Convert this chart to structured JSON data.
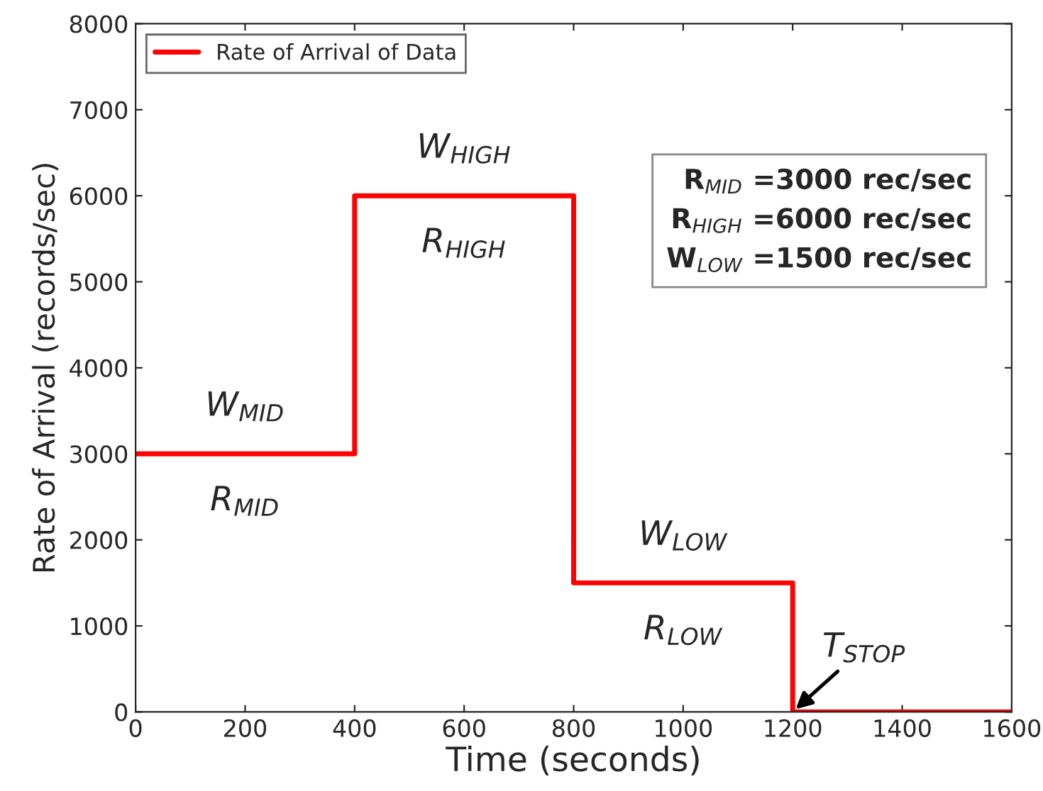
{
  "chart_data": {
    "type": "line",
    "xlabel": "Time (seconds)",
    "ylabel": "Rate of Arrival (records/sec)",
    "x": [
      0,
      400,
      400,
      800,
      800,
      1200,
      1200,
      1600
    ],
    "series": [
      {
        "name": "Rate of Arrival of Data",
        "color": "#ff0000",
        "values": [
          3000,
          3000,
          6000,
          6000,
          1500,
          1500,
          0,
          0
        ]
      }
    ],
    "xlim": [
      0,
      1600
    ],
    "xticks": [
      0,
      200,
      400,
      600,
      800,
      1000,
      1200,
      1400,
      1600
    ],
    "ylim": [
      0,
      8000
    ],
    "yticks": [
      0,
      1000,
      2000,
      3000,
      4000,
      5000,
      6000,
      7000,
      8000
    ],
    "legend": "top left",
    "grid": false,
    "annotations": [
      {
        "text": "W$_{MID}$",
        "x": 200,
        "y": 3000
      },
      {
        "text": "R$_{MID}$",
        "x": 200,
        "y": 3000
      },
      {
        "text": "W$_{HIGH}$",
        "x": 600,
        "y": 6000
      },
      {
        "text": "R$_{HIGH}$",
        "x": 600,
        "y": 6000
      },
      {
        "text": "W$_{LOW}$",
        "x": 1000,
        "y": 1500
      },
      {
        "text": "R$_{LOW}$",
        "x": 1000,
        "y": 1500
      },
      {
        "text": "T$_{STOP}$",
        "x": 1200,
        "y": 0
      },
      "R$_{MID}$ =3000 rec/sec",
      "R$_{HIGH}$ =6000 rec/sec",
      "W$_{LOW}$ =1500 rec/sec"
    ]
  }
}
